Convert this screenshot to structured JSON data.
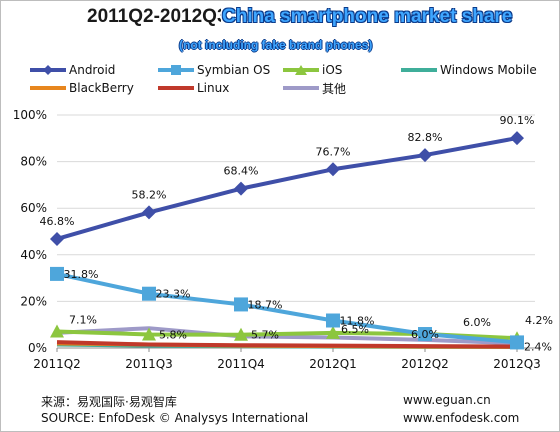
{
  "header": {
    "title_prefix": "2011Q2-2012Q3",
    "title_overlay": "China smartphone market share",
    "subtitle": "(not including fake brand phones)"
  },
  "footer": {
    "source_cn": "来源：易观国际·易观智库",
    "source_en": "SOURCE: EnfoDesk © Analysys International",
    "url1": "www.eguan.cn",
    "url2": "www.enfodesk.com"
  },
  "chart_data": {
    "type": "line",
    "categories": [
      "2011Q2",
      "2011Q3",
      "2011Q4",
      "2012Q1",
      "2012Q2",
      "2012Q3"
    ],
    "ylim": [
      0,
      100
    ],
    "yticks": [
      0,
      20,
      40,
      60,
      80,
      100
    ],
    "ytick_labels": [
      "0%",
      "20%",
      "40%",
      "60%",
      "80%",
      "100%"
    ],
    "grid": true,
    "legend_position": "top",
    "series": [
      {
        "name": "Android",
        "color": "#3f4fa8",
        "marker": "diamond",
        "values": [
          46.8,
          58.2,
          68.4,
          76.7,
          82.8,
          90.1
        ],
        "labels": [
          "46.8%",
          "58.2%",
          "68.4%",
          "76.7%",
          "82.8%",
          "90.1%"
        ]
      },
      {
        "name": "Symbian OS",
        "color": "#4ea6db",
        "marker": "square",
        "values": [
          31.8,
          23.3,
          18.7,
          11.8,
          6.0,
          2.4
        ],
        "labels": [
          "31.8%",
          "23.3%",
          "18.7%",
          "11.8%",
          "6.0%",
          "2.4%"
        ]
      },
      {
        "name": "iOS",
        "color": "#8cc63f",
        "marker": "triangle",
        "values": [
          7.1,
          5.8,
          5.7,
          6.5,
          6.0,
          4.2
        ],
        "labels": [
          "7.1%",
          "5.8%",
          "5.7%",
          "6.5%",
          "6.0%",
          "4.2%"
        ]
      },
      {
        "name": "Windows Mobile",
        "color": "#3fae9a",
        "marker": "none",
        "values": [
          1.5,
          1.0,
          0.8,
          0.6,
          0.5,
          0.4
        ]
      },
      {
        "name": "BlackBerry",
        "color": "#e7861e",
        "marker": "none",
        "values": [
          2.0,
          1.5,
          1.0,
          0.8,
          0.6,
          0.5
        ]
      },
      {
        "name": "Linux",
        "color": "#c0392b",
        "marker": "none",
        "values": [
          2.5,
          1.5,
          1.2,
          1.0,
          0.8,
          0.6
        ]
      },
      {
        "name": "其他",
        "color": "#9e9ac8",
        "marker": "none",
        "values": [
          6.5,
          8.5,
          5.0,
          4.5,
          3.5,
          2.0
        ]
      }
    ]
  }
}
